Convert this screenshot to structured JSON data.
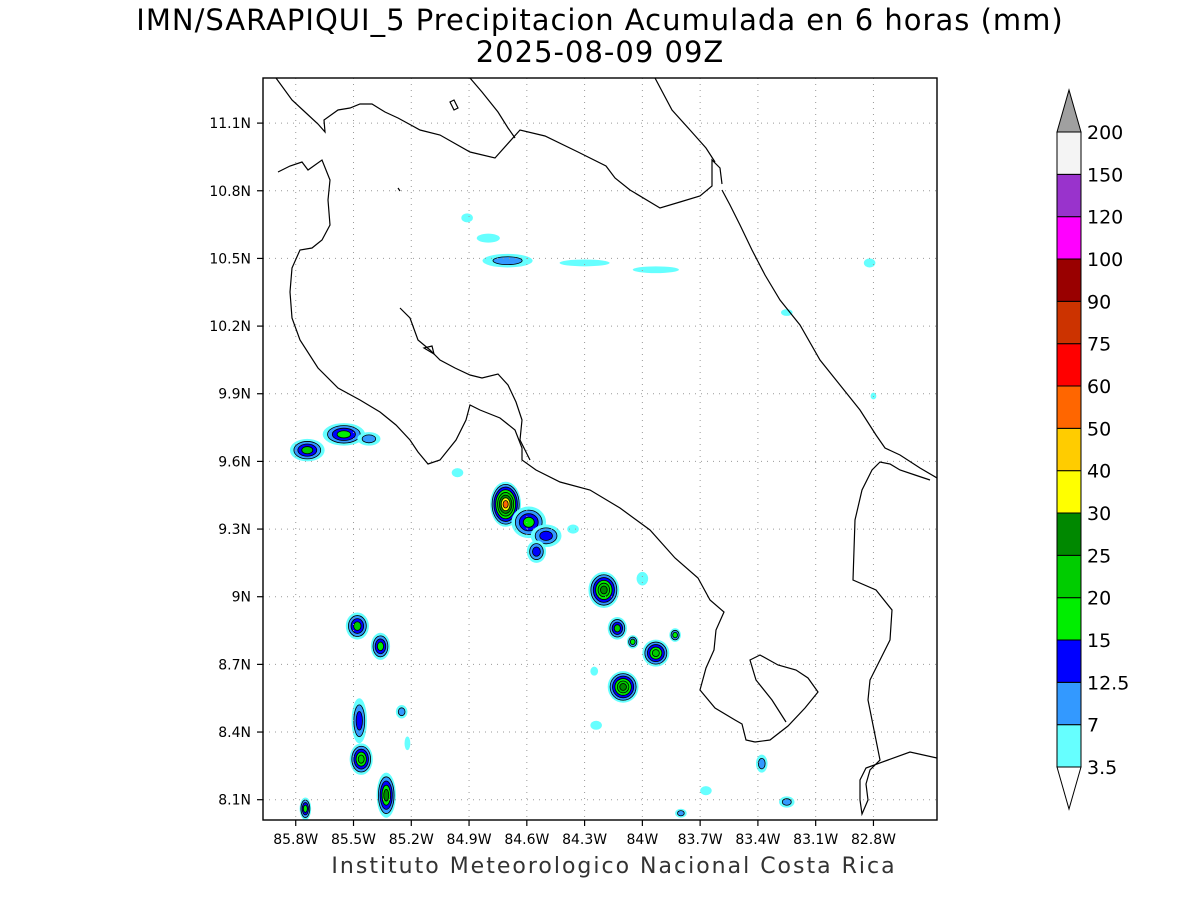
{
  "title": {
    "line1": "IMN/SARAPIQUI_5 Precipitacion Acumulada en 6 horas (mm)",
    "line2": "2025-08-09 09Z"
  },
  "footer": "Instituto Meteorologico Nacional Costa Rica",
  "map": {
    "lon_range": [
      -85.97,
      -82.47
    ],
    "lat_range": [
      8.01,
      11.3
    ],
    "lat_ticks": [
      {
        "value": 11.1,
        "label": "11.1N"
      },
      {
        "value": 10.8,
        "label": "10.8N"
      },
      {
        "value": 10.5,
        "label": "10.5N"
      },
      {
        "value": 10.2,
        "label": "10.2N"
      },
      {
        "value": 9.9,
        "label": "9.9N"
      },
      {
        "value": 9.6,
        "label": "9.6N"
      },
      {
        "value": 9.3,
        "label": "9.3N"
      },
      {
        "value": 9.0,
        "label": "9N"
      },
      {
        "value": 8.7,
        "label": "8.7N"
      },
      {
        "value": 8.4,
        "label": "8.4N"
      },
      {
        "value": 8.1,
        "label": "8.1N"
      }
    ],
    "lon_ticks": [
      {
        "value": -85.8,
        "label": "85.8W"
      },
      {
        "value": -85.5,
        "label": "85.5W"
      },
      {
        "value": -85.2,
        "label": "85.2W"
      },
      {
        "value": -84.9,
        "label": "84.9W"
      },
      {
        "value": -84.6,
        "label": "84.6W"
      },
      {
        "value": -84.3,
        "label": "84.3W"
      },
      {
        "value": -84.0,
        "label": "84W"
      },
      {
        "value": -83.7,
        "label": "83.7W"
      },
      {
        "value": -83.4,
        "label": "83.4W"
      },
      {
        "value": -83.1,
        "label": "83.1W"
      },
      {
        "value": -82.8,
        "label": "82.8W"
      }
    ],
    "grid": "dotted"
  },
  "colorbar": {
    "labels": [
      "3.5",
      "7",
      "12.5",
      "15",
      "20",
      "25",
      "30",
      "40",
      "50",
      "60",
      "75",
      "90",
      "100",
      "120",
      "150",
      "200"
    ],
    "colors": [
      "#66ffff",
      "#3399ff",
      "#0000ff",
      "#00ee00",
      "#00cc00",
      "#008800",
      "#ffff00",
      "#ffcc00",
      "#ff6600",
      "#ff0000",
      "#cc3300",
      "#990000",
      "#ff00ff",
      "#9933cc",
      "#f4f4f4"
    ],
    "over_color": "#a0a0a0",
    "under_color": "#ffffff"
  },
  "precip_cells": [
    {
      "name": "northern-band-1",
      "lon": -84.91,
      "lat": 10.68,
      "r": [
        0.03,
        0.02
      ],
      "levels": [
        1
      ]
    },
    {
      "name": "northern-band-2",
      "lon": -84.8,
      "lat": 10.59,
      "r": [
        0.06,
        0.02
      ],
      "levels": [
        1
      ]
    },
    {
      "name": "northern-band-3",
      "lon": -84.7,
      "lat": 10.49,
      "r": [
        0.13,
        0.03
      ],
      "levels": [
        1,
        2
      ]
    },
    {
      "name": "northern-band-4",
      "lon": -84.3,
      "lat": 10.48,
      "r": [
        0.13,
        0.015
      ],
      "levels": [
        1
      ]
    },
    {
      "name": "northern-band-5",
      "lon": -83.93,
      "lat": 10.45,
      "r": [
        0.12,
        0.015
      ],
      "levels": [
        1
      ]
    },
    {
      "name": "caribbean-cell-1",
      "lon": -82.82,
      "lat": 10.48,
      "r": [
        0.03,
        0.02
      ],
      "levels": [
        1
      ]
    },
    {
      "name": "caribbean-cell-2",
      "lon": -83.25,
      "lat": 10.26,
      "r": [
        0.03,
        0.015
      ],
      "levels": [
        1
      ]
    },
    {
      "name": "caribbean-cell-3",
      "lon": -82.8,
      "lat": 9.89,
      "r": [
        0.015,
        0.015
      ],
      "levels": [
        1
      ]
    },
    {
      "name": "nicoya-cell-1",
      "lon": -85.74,
      "lat": 9.65,
      "r": [
        0.09,
        0.05
      ],
      "levels": [
        1,
        2,
        3,
        5
      ]
    },
    {
      "name": "nicoya-cell-2",
      "lon": -85.55,
      "lat": 9.72,
      "r": [
        0.11,
        0.05
      ],
      "levels": [
        1,
        2,
        3,
        4
      ]
    },
    {
      "name": "nicoya-cell-3",
      "lon": -85.42,
      "lat": 9.7,
      "r": [
        0.06,
        0.03
      ],
      "levels": [
        1,
        2
      ]
    },
    {
      "name": "pacific-cell-1",
      "lon": -84.96,
      "lat": 9.55,
      "r": [
        0.03,
        0.02
      ],
      "levels": [
        1
      ]
    },
    {
      "name": "central-pacific-core",
      "lon": -84.71,
      "lat": 9.41,
      "r": [
        0.08,
        0.1
      ],
      "levels": [
        1,
        2,
        3,
        4,
        5,
        6,
        7,
        9
      ]
    },
    {
      "name": "central-pacific-tail-1",
      "lon": -84.59,
      "lat": 9.33,
      "r": [
        0.09,
        0.07
      ],
      "levels": [
        1,
        2,
        3,
        4
      ]
    },
    {
      "name": "central-pacific-tail-2",
      "lon": -84.5,
      "lat": 9.27,
      "r": [
        0.08,
        0.05
      ],
      "levels": [
        1,
        2,
        3
      ]
    },
    {
      "name": "central-pacific-tail-3",
      "lon": -84.55,
      "lat": 9.2,
      "r": [
        0.05,
        0.05
      ],
      "levels": [
        1,
        2,
        3
      ]
    },
    {
      "name": "pacific-cell-2",
      "lon": -84.36,
      "lat": 9.3,
      "r": [
        0.03,
        0.02
      ],
      "levels": [
        1
      ]
    },
    {
      "name": "osa-north-cell",
      "lon": -84.2,
      "lat": 9.03,
      "r": [
        0.08,
        0.08
      ],
      "levels": [
        1,
        2,
        3,
        4,
        5,
        6
      ]
    },
    {
      "name": "osa-cell-1",
      "lon": -84.13,
      "lat": 8.86,
      "r": [
        0.05,
        0.05
      ],
      "levels": [
        1,
        2,
        3,
        5
      ]
    },
    {
      "name": "osa-cell-2",
      "lon": -84.05,
      "lat": 8.8,
      "r": [
        0.03,
        0.03
      ],
      "levels": [
        1,
        2,
        4
      ]
    },
    {
      "name": "osa-cell-3",
      "lon": -84.1,
      "lat": 8.6,
      "r": [
        0.08,
        0.07
      ],
      "levels": [
        1,
        2,
        3,
        4,
        5,
        6
      ]
    },
    {
      "name": "osa-cell-4",
      "lon": -83.93,
      "lat": 8.75,
      "r": [
        0.07,
        0.06
      ],
      "levels": [
        1,
        2,
        3,
        4,
        5
      ]
    },
    {
      "name": "osa-cell-5",
      "lon": -83.83,
      "lat": 8.83,
      "r": [
        0.03,
        0.03
      ],
      "levels": [
        1,
        2,
        4
      ]
    },
    {
      "name": "osa-cell-6",
      "lon": -84.0,
      "lat": 9.08,
      "r": [
        0.03,
        0.03
      ],
      "levels": [
        1
      ]
    },
    {
      "name": "osa-cell-7",
      "lon": -84.25,
      "lat": 8.67,
      "r": [
        0.02,
        0.02
      ],
      "levels": [
        1
      ]
    },
    {
      "name": "osa-cell-8",
      "lon": -84.24,
      "lat": 8.43,
      "r": [
        0.03,
        0.02
      ],
      "levels": [
        1
      ]
    },
    {
      "name": "southwest-cell-1",
      "lon": -85.48,
      "lat": 8.87,
      "r": [
        0.06,
        0.06
      ],
      "levels": [
        1,
        2,
        3,
        5
      ]
    },
    {
      "name": "southwest-cell-2",
      "lon": -85.36,
      "lat": 8.78,
      "r": [
        0.05,
        0.06
      ],
      "levels": [
        1,
        2,
        3,
        4
      ]
    },
    {
      "name": "southwest-cell-3",
      "lon": -85.47,
      "lat": 8.45,
      "r": [
        0.04,
        0.1
      ],
      "levels": [
        1,
        2,
        3
      ]
    },
    {
      "name": "southwest-cell-4",
      "lon": -85.46,
      "lat": 8.28,
      "r": [
        0.06,
        0.07
      ],
      "levels": [
        1,
        2,
        3,
        4,
        5
      ]
    },
    {
      "name": "southwest-cell-5",
      "lon": -85.25,
      "lat": 8.49,
      "r": [
        0.03,
        0.03
      ],
      "levels": [
        1,
        2
      ]
    },
    {
      "name": "southwest-cell-6",
      "lon": -85.33,
      "lat": 8.12,
      "r": [
        0.05,
        0.1
      ],
      "levels": [
        1,
        2,
        3,
        4,
        6
      ]
    },
    {
      "name": "southwest-cell-7",
      "lon": -85.75,
      "lat": 8.06,
      "r": [
        0.03,
        0.05
      ],
      "levels": [
        1,
        2,
        3,
        4
      ]
    },
    {
      "name": "southwest-cell-8",
      "lon": -85.22,
      "lat": 8.35,
      "r": [
        0.015,
        0.03
      ],
      "levels": [
        1
      ]
    },
    {
      "name": "southeast-cell-1",
      "lon": -83.38,
      "lat": 8.26,
      "r": [
        0.03,
        0.04
      ],
      "levels": [
        1,
        2
      ]
    },
    {
      "name": "southeast-cell-2",
      "lon": -83.67,
      "lat": 8.14,
      "r": [
        0.03,
        0.02
      ],
      "levels": [
        1
      ]
    },
    {
      "name": "southeast-cell-3",
      "lon": -83.25,
      "lat": 8.09,
      "r": [
        0.04,
        0.025
      ],
      "levels": [
        1,
        2
      ]
    },
    {
      "name": "southeast-cell-4",
      "lon": -83.8,
      "lat": 8.04,
      "r": [
        0.03,
        0.02
      ],
      "levels": [
        1,
        2
      ]
    }
  ]
}
